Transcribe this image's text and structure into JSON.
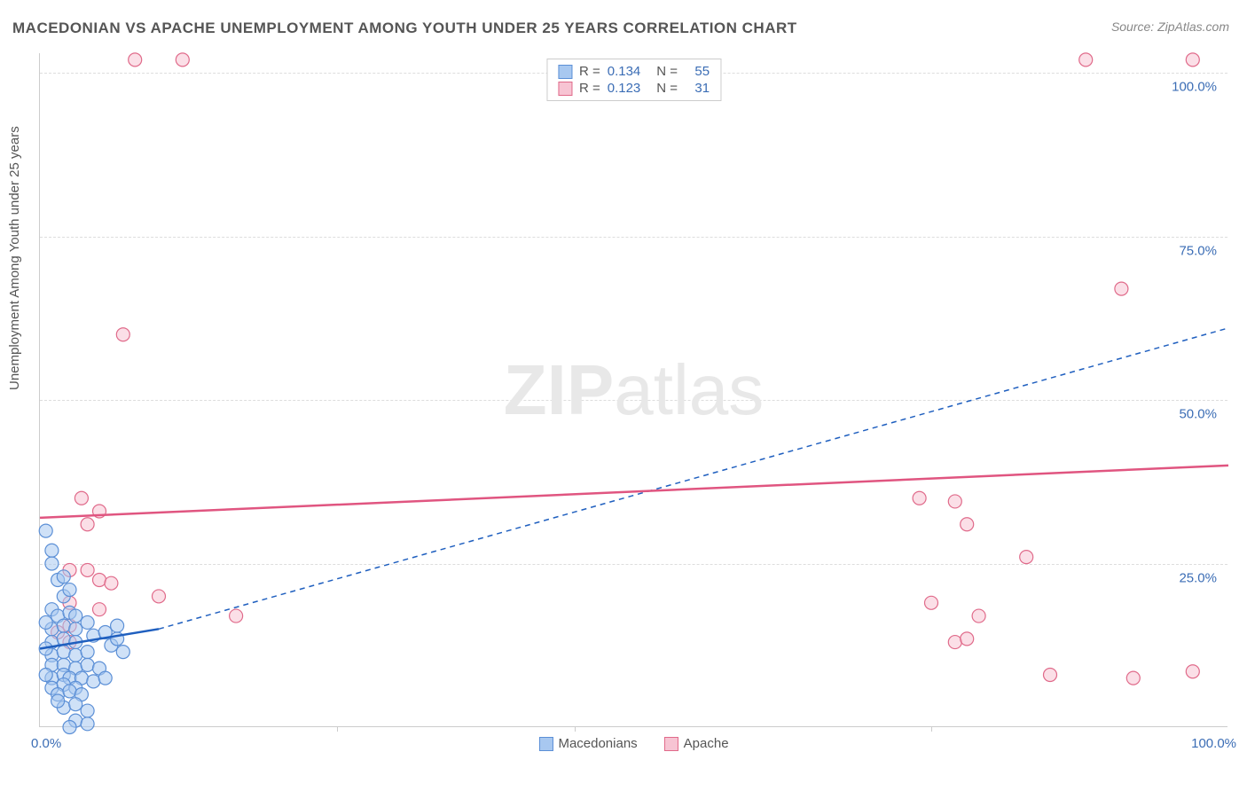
{
  "title": "MACEDONIAN VS APACHE UNEMPLOYMENT AMONG YOUTH UNDER 25 YEARS CORRELATION CHART",
  "source": "Source: ZipAtlas.com",
  "y_axis_label": "Unemployment Among Youth under 25 years",
  "watermark": {
    "bold": "ZIP",
    "light": "atlas"
  },
  "chart": {
    "type": "scatter",
    "xlim": [
      0,
      100
    ],
    "ylim": [
      0,
      103
    ],
    "x_ticks": [
      {
        "pos": 0,
        "label": "0.0%"
      },
      {
        "pos": 100,
        "label": "100.0%"
      }
    ],
    "x_minor_ticks": [
      25,
      45,
      75
    ],
    "y_ticks": [
      {
        "pos": 25,
        "label": "25.0%"
      },
      {
        "pos": 50,
        "label": "50.0%"
      },
      {
        "pos": 75,
        "label": "75.0%"
      },
      {
        "pos": 100,
        "label": "100.0%"
      }
    ],
    "grid_color": "#dddddd",
    "background_color": "#ffffff",
    "series": [
      {
        "name": "Macedonians",
        "marker_fill": "#a8c8f0",
        "marker_stroke": "#5b8fd6",
        "marker_fill_opacity": 0.55,
        "marker_radius": 7.5,
        "trend_color": "#1f5fbf",
        "trend_solid": {
          "x1": 0,
          "y1": 12,
          "x2": 10,
          "y2": 15
        },
        "trend_dash": {
          "x1": 10,
          "y1": 15,
          "x2": 100,
          "y2": 61
        },
        "R": "0.134",
        "N": "55",
        "points": [
          [
            0.5,
            30
          ],
          [
            1,
            27
          ],
          [
            1,
            25
          ],
          [
            1.5,
            22.5
          ],
          [
            2,
            23
          ],
          [
            2,
            20
          ],
          [
            2.5,
            21
          ],
          [
            1,
            18
          ],
          [
            1.5,
            17
          ],
          [
            2.5,
            17.5
          ],
          [
            3,
            17
          ],
          [
            1,
            15
          ],
          [
            2,
            15.5
          ],
          [
            3,
            15
          ],
          [
            4,
            16
          ],
          [
            1,
            13
          ],
          [
            2,
            13.5
          ],
          [
            3,
            13
          ],
          [
            4.5,
            14
          ],
          [
            5.5,
            14.5
          ],
          [
            6,
            12.5
          ],
          [
            6.5,
            13.5
          ],
          [
            7,
            11.5
          ],
          [
            1,
            11
          ],
          [
            2,
            11.5
          ],
          [
            3,
            11
          ],
          [
            4,
            11.5
          ],
          [
            1,
            9.5
          ],
          [
            2,
            9.5
          ],
          [
            3,
            9
          ],
          [
            4,
            9.5
          ],
          [
            5,
            9
          ],
          [
            1,
            7.5
          ],
          [
            2,
            8
          ],
          [
            2.5,
            7.5
          ],
          [
            3.5,
            7.5
          ],
          [
            4.5,
            7
          ],
          [
            5.5,
            7.5
          ],
          [
            1,
            6
          ],
          [
            2,
            6.5
          ],
          [
            3,
            6
          ],
          [
            1.5,
            5
          ],
          [
            2.5,
            5.5
          ],
          [
            3.5,
            5
          ],
          [
            2,
            3
          ],
          [
            3,
            3.5
          ],
          [
            4,
            2.5
          ],
          [
            3,
            1
          ],
          [
            4,
            0.5
          ],
          [
            2.5,
            0
          ],
          [
            1.5,
            4
          ],
          [
            0.5,
            8
          ],
          [
            0.5,
            12
          ],
          [
            0.5,
            16
          ],
          [
            6.5,
            15.5
          ]
        ]
      },
      {
        "name": "Apache",
        "marker_fill": "#f7c4d3",
        "marker_stroke": "#e06a8a",
        "marker_fill_opacity": 0.55,
        "marker_radius": 7.5,
        "trend_color": "#e05580",
        "trend_solid": {
          "x1": 0,
          "y1": 32,
          "x2": 100,
          "y2": 40
        },
        "trend_dash": null,
        "R": "0.123",
        "N": "31",
        "points": [
          [
            8,
            102
          ],
          [
            12,
            102
          ],
          [
            88,
            102
          ],
          [
            97,
            102
          ],
          [
            7,
            60
          ],
          [
            91,
            67
          ],
          [
            3.5,
            35
          ],
          [
            5,
            33
          ],
          [
            4,
            31
          ],
          [
            74,
            35
          ],
          [
            77,
            34.5
          ],
          [
            78,
            31
          ],
          [
            83,
            26
          ],
          [
            75,
            19
          ],
          [
            79,
            17
          ],
          [
            2.5,
            24
          ],
          [
            4,
            24
          ],
          [
            5,
            22.5
          ],
          [
            6,
            22
          ],
          [
            10,
            20
          ],
          [
            16.5,
            17
          ],
          [
            2.5,
            19
          ],
          [
            77,
            13
          ],
          [
            78,
            13.5
          ],
          [
            85,
            8
          ],
          [
            92,
            7.5
          ],
          [
            97,
            8.5
          ],
          [
            1.5,
            14.5
          ],
          [
            2.5,
            15.5
          ],
          [
            2.5,
            13
          ],
          [
            5,
            18
          ]
        ]
      }
    ],
    "legend_bottom": [
      {
        "label": "Macedonians",
        "fill": "#a8c8f0",
        "stroke": "#5b8fd6"
      },
      {
        "label": "Apache",
        "fill": "#f7c4d3",
        "stroke": "#e06a8a"
      }
    ]
  }
}
